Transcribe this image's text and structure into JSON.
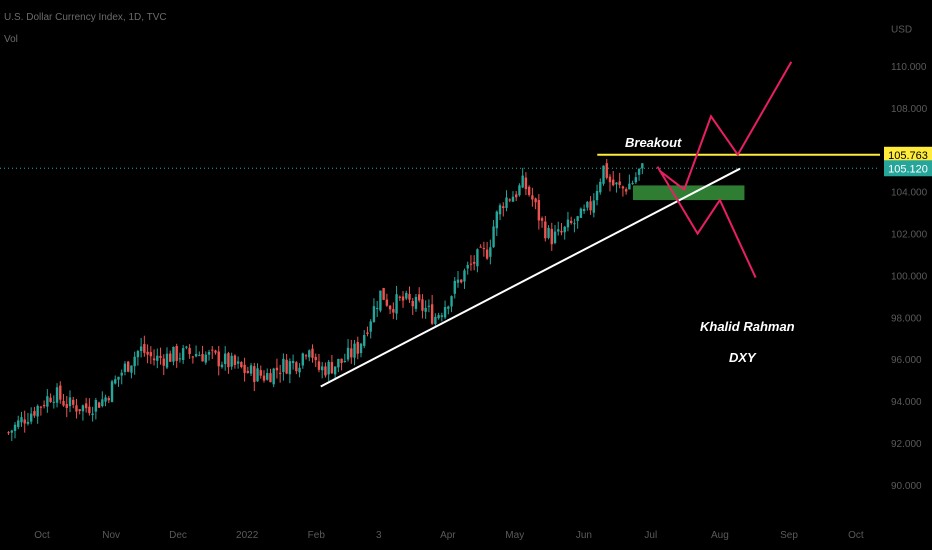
{
  "header": {
    "title": "U.S. Dollar Currency Index, 1D, TVC",
    "indicator": "Vol"
  },
  "chart_data": {
    "type": "candlestick",
    "currency": "USD",
    "ylim": [
      88.8,
      112.2
    ],
    "y_ticks": [
      "90.000",
      "92.000",
      "94.000",
      "96.000",
      "98.000",
      "100.000",
      "102.000",
      "104.000",
      "106.000",
      "108.000",
      "110.000"
    ],
    "x_ticks": [
      {
        "label": "Oct",
        "day": 0
      },
      {
        "label": "Nov",
        "day": 31
      },
      {
        "label": "Dec",
        "day": 61
      },
      {
        "label": "2022",
        "day": 92
      },
      {
        "label": "Feb",
        "day": 123
      },
      {
        "label": "3",
        "day": 151
      },
      {
        "label": "Apr",
        "day": 182
      },
      {
        "label": "May",
        "day": 212
      },
      {
        "label": "Jun",
        "day": 243
      },
      {
        "label": "Jul",
        "day": 273
      },
      {
        "label": "Aug",
        "day": 304
      },
      {
        "label": "Sep",
        "day": 335
      },
      {
        "label": "Oct",
        "day": 365
      }
    ],
    "close_path": [
      [
        -15,
        92.5
      ],
      [
        -8,
        93.2
      ],
      [
        0,
        93.9
      ],
      [
        5,
        94.4
      ],
      [
        12,
        93.8
      ],
      [
        20,
        93.7
      ],
      [
        28,
        94.1
      ],
      [
        35,
        95.3
      ],
      [
        44,
        96.5
      ],
      [
        50,
        96.0
      ],
      [
        60,
        96.2
      ],
      [
        70,
        96.3
      ],
      [
        82,
        95.9
      ],
      [
        92,
        95.4
      ],
      [
        100,
        95.2
      ],
      [
        108,
        95.7
      ],
      [
        115,
        95.9
      ],
      [
        120,
        96.8
      ],
      [
        123,
        95.5
      ],
      [
        128,
        95.6
      ],
      [
        135,
        95.9
      ],
      [
        142,
        96.6
      ],
      [
        148,
        98.2
      ],
      [
        152,
        99.2
      ],
      [
        156,
        98.6
      ],
      [
        162,
        98.8
      ],
      [
        167,
        98.6
      ],
      [
        172,
        98.4
      ],
      [
        176,
        98.0
      ],
      [
        180,
        98.5
      ],
      [
        186,
        99.6
      ],
      [
        190,
        100.2
      ],
      [
        195,
        100.8
      ],
      [
        200,
        101.2
      ],
      [
        203,
        102.6
      ],
      [
        207,
        103.6
      ],
      [
        212,
        103.9
      ],
      [
        216,
        104.4
      ],
      [
        220,
        103.6
      ],
      [
        224,
        102.5
      ],
      [
        228,
        101.8
      ],
      [
        232,
        101.9
      ],
      [
        236,
        102.3
      ],
      [
        240,
        102.6
      ],
      [
        243,
        102.9
      ],
      [
        246,
        103.3
      ],
      [
        249,
        104.3
      ],
      [
        252,
        105.2
      ],
      [
        255,
        104.4
      ],
      [
        260,
        104.1
      ],
      [
        265,
        104.5
      ],
      [
        268,
        105.0
      ],
      [
        270,
        105.1
      ]
    ],
    "current_price": 105.12,
    "resistance": {
      "level": 105.763,
      "from_day": 249,
      "label": "Breakout"
    },
    "demand_zone": {
      "from_day": 265,
      "to_day": 315,
      "low": 103.6,
      "high": 104.3
    },
    "trendline": [
      [
        125,
        94.7
      ],
      [
        313,
        105.1
      ]
    ],
    "projection_up": [
      [
        277,
        105.0
      ],
      [
        288,
        104.1
      ],
      [
        300,
        107.6
      ],
      [
        312,
        105.763
      ],
      [
        336,
        110.2
      ]
    ],
    "projection_down": [
      [
        276,
        105.2
      ],
      [
        294,
        102.0
      ],
      [
        304,
        103.6
      ],
      [
        320,
        99.9
      ]
    ],
    "annotations": {
      "author": "Khalid Rahman",
      "symbol": "DXY"
    },
    "colors": {
      "up": "#26a69a",
      "down": "#ef5350",
      "resistance": "#ffeb3b",
      "price_tag": "#26a69a",
      "zone": "#2e7d32",
      "trend": "#ffffff",
      "projection": "#e91e63"
    }
  }
}
